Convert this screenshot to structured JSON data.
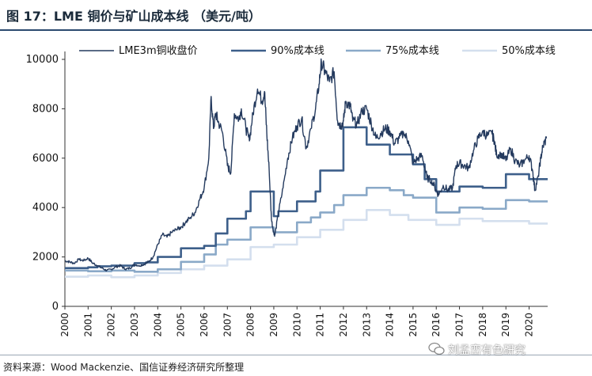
{
  "header": {
    "title": "图 17：LME 铜价与矿山成本线  （美元/吨）"
  },
  "footer": {
    "source": "资料来源：Wood Mackenzie、国信证券经济研究所整理",
    "watermark": "刘孟峦有色研究"
  },
  "chart_data": {
    "type": "line",
    "ylim": [
      0,
      10000
    ],
    "yticks": [
      "0",
      "2000",
      "4000",
      "6000",
      "8000",
      "10000"
    ],
    "xlim": [
      2000,
      2020.8
    ],
    "xticks": [
      "2000",
      "2001",
      "2002",
      "2003",
      "2004",
      "2005",
      "2006",
      "2007",
      "2008",
      "2009",
      "2010",
      "2011",
      "2012",
      "2013",
      "2014",
      "2015",
      "2016",
      "2017",
      "2018",
      "2019",
      "2020"
    ],
    "legend_placement": "top",
    "series": [
      {
        "name": "LME3m铜收盘价",
        "color": "#243a5e",
        "style": "line",
        "points": [
          [
            2000.0,
            1850
          ],
          [
            2000.2,
            1800
          ],
          [
            2000.4,
            1750
          ],
          [
            2000.6,
            1900
          ],
          [
            2000.8,
            1850
          ],
          [
            2001.0,
            1950
          ],
          [
            2001.2,
            1750
          ],
          [
            2001.4,
            1650
          ],
          [
            2001.6,
            1550
          ],
          [
            2001.8,
            1450
          ],
          [
            2002.0,
            1500
          ],
          [
            2002.2,
            1600
          ],
          [
            2002.4,
            1650
          ],
          [
            2002.6,
            1500
          ],
          [
            2002.8,
            1550
          ],
          [
            2003.0,
            1700
          ],
          [
            2003.2,
            1650
          ],
          [
            2003.4,
            1700
          ],
          [
            2003.6,
            1800
          ],
          [
            2003.8,
            2000
          ],
          [
            2004.0,
            2500
          ],
          [
            2004.2,
            2900
          ],
          [
            2004.4,
            2800
          ],
          [
            2004.6,
            3000
          ],
          [
            2004.8,
            3100
          ],
          [
            2005.0,
            3200
          ],
          [
            2005.2,
            3400
          ],
          [
            2005.4,
            3600
          ],
          [
            2005.6,
            3800
          ],
          [
            2005.8,
            4300
          ],
          [
            2006.0,
            4800
          ],
          [
            2006.2,
            6000
          ],
          [
            2006.3,
            8500
          ],
          [
            2006.4,
            7200
          ],
          [
            2006.5,
            7800
          ],
          [
            2006.6,
            7500
          ],
          [
            2006.8,
            7000
          ],
          [
            2007.0,
            5700
          ],
          [
            2007.15,
            5400
          ],
          [
            2007.3,
            7800
          ],
          [
            2007.5,
            7600
          ],
          [
            2007.6,
            8000
          ],
          [
            2007.8,
            7200
          ],
          [
            2007.95,
            6700
          ],
          [
            2008.1,
            7800
          ],
          [
            2008.3,
            8800
          ],
          [
            2008.5,
            8300
          ],
          [
            2008.6,
            8700
          ],
          [
            2008.7,
            7000
          ],
          [
            2008.8,
            5500
          ],
          [
            2008.9,
            3500
          ],
          [
            2009.0,
            3000
          ],
          [
            2009.05,
            2900
          ],
          [
            2009.2,
            3800
          ],
          [
            2009.4,
            4800
          ],
          [
            2009.6,
            6000
          ],
          [
            2009.8,
            6800
          ],
          [
            2010.0,
            7300
          ],
          [
            2010.2,
            7600
          ],
          [
            2010.4,
            6400
          ],
          [
            2010.6,
            7200
          ],
          [
            2010.8,
            8000
          ],
          [
            2010.95,
            9000
          ],
          [
            2011.05,
            9900
          ],
          [
            2011.2,
            9500
          ],
          [
            2011.4,
            9100
          ],
          [
            2011.6,
            9500
          ],
          [
            2011.75,
            7500
          ],
          [
            2011.9,
            7300
          ],
          [
            2012.0,
            7500
          ],
          [
            2012.1,
            8300
          ],
          [
            2012.3,
            8100
          ],
          [
            2012.4,
            7500
          ],
          [
            2012.6,
            7400
          ],
          [
            2012.8,
            7900
          ],
          [
            2013.0,
            8000
          ],
          [
            2013.2,
            7400
          ],
          [
            2013.4,
            6800
          ],
          [
            2013.6,
            7000
          ],
          [
            2013.8,
            7200
          ],
          [
            2014.0,
            7100
          ],
          [
            2014.2,
            6600
          ],
          [
            2014.4,
            6800
          ],
          [
            2014.6,
            7000
          ],
          [
            2014.8,
            6700
          ],
          [
            2015.0,
            5800
          ],
          [
            2015.2,
            6000
          ],
          [
            2015.4,
            6100
          ],
          [
            2015.6,
            5200
          ],
          [
            2015.8,
            5100
          ],
          [
            2016.0,
            4700
          ],
          [
            2016.1,
            4500
          ],
          [
            2016.3,
            4900
          ],
          [
            2016.5,
            4700
          ],
          [
            2016.7,
            4800
          ],
          [
            2016.85,
            5700
          ],
          [
            2017.0,
            5800
          ],
          [
            2017.2,
            5700
          ],
          [
            2017.4,
            5600
          ],
          [
            2017.6,
            6300
          ],
          [
            2017.8,
            6800
          ],
          [
            2018.0,
            7100
          ],
          [
            2018.2,
            6900
          ],
          [
            2018.4,
            7000
          ],
          [
            2018.5,
            6700
          ],
          [
            2018.6,
            6100
          ],
          [
            2018.8,
            6200
          ],
          [
            2019.0,
            5900
          ],
          [
            2019.2,
            6400
          ],
          [
            2019.4,
            5900
          ],
          [
            2019.6,
            5700
          ],
          [
            2019.8,
            5900
          ],
          [
            2020.0,
            6100
          ],
          [
            2020.15,
            5500
          ],
          [
            2020.25,
            4700
          ],
          [
            2020.4,
            5300
          ],
          [
            2020.5,
            6000
          ],
          [
            2020.6,
            6500
          ],
          [
            2020.75,
            6800
          ]
        ]
      },
      {
        "name": "90%成本线",
        "color": "#3d5f8a",
        "style": "step",
        "points": [
          [
            2000.0,
            1550
          ],
          [
            2001.0,
            1580
          ],
          [
            2001.4,
            1620
          ],
          [
            2002.0,
            1650
          ],
          [
            2003.0,
            1750
          ],
          [
            2003.5,
            1780
          ],
          [
            2004.0,
            2000
          ],
          [
            2005.0,
            2350
          ],
          [
            2006.0,
            2450
          ],
          [
            2006.5,
            2950
          ],
          [
            2007.0,
            3550
          ],
          [
            2007.8,
            3850
          ],
          [
            2008.0,
            4650
          ],
          [
            2009.0,
            3650
          ],
          [
            2009.2,
            3850
          ],
          [
            2010.0,
            4250
          ],
          [
            2010.8,
            4650
          ],
          [
            2011.0,
            5500
          ],
          [
            2012.0,
            7250
          ],
          [
            2013.0,
            6550
          ],
          [
            2014.0,
            6150
          ],
          [
            2015.0,
            5750
          ],
          [
            2015.5,
            5150
          ],
          [
            2016.0,
            4650
          ],
          [
            2017.0,
            4850
          ],
          [
            2018.0,
            4800
          ],
          [
            2019.0,
            5350
          ],
          [
            2020.0,
            5150
          ],
          [
            2020.8,
            5150
          ]
        ]
      },
      {
        "name": "75%成本线",
        "color": "#8aa9c8",
        "style": "step",
        "points": [
          [
            2000.0,
            1450
          ],
          [
            2001.0,
            1420
          ],
          [
            2002.0,
            1450
          ],
          [
            2003.0,
            1400
          ],
          [
            2004.0,
            1500
          ],
          [
            2005.0,
            1800
          ],
          [
            2006.0,
            2100
          ],
          [
            2006.5,
            2500
          ],
          [
            2007.0,
            2700
          ],
          [
            2008.0,
            3200
          ],
          [
            2009.0,
            3000
          ],
          [
            2010.0,
            3400
          ],
          [
            2010.6,
            3600
          ],
          [
            2011.0,
            3800
          ],
          [
            2011.6,
            4100
          ],
          [
            2012.0,
            4500
          ],
          [
            2013.0,
            4800
          ],
          [
            2014.0,
            4700
          ],
          [
            2014.6,
            4500
          ],
          [
            2015.0,
            4400
          ],
          [
            2016.0,
            3800
          ],
          [
            2017.0,
            4000
          ],
          [
            2018.0,
            3950
          ],
          [
            2019.0,
            4300
          ],
          [
            2020.0,
            4250
          ],
          [
            2020.8,
            4250
          ]
        ]
      },
      {
        "name": "50%成本线",
        "color": "#d4dfee",
        "style": "step",
        "points": [
          [
            2000.0,
            1200
          ],
          [
            2001.0,
            1250
          ],
          [
            2002.0,
            1180
          ],
          [
            2003.0,
            1250
          ],
          [
            2004.0,
            1350
          ],
          [
            2005.0,
            1500
          ],
          [
            2006.0,
            1650
          ],
          [
            2007.0,
            1900
          ],
          [
            2008.0,
            2400
          ],
          [
            2009.0,
            2500
          ],
          [
            2010.0,
            2800
          ],
          [
            2011.0,
            3100
          ],
          [
            2012.0,
            3500
          ],
          [
            2013.0,
            3900
          ],
          [
            2014.0,
            3700
          ],
          [
            2014.8,
            3500
          ],
          [
            2016.0,
            3300
          ],
          [
            2017.0,
            3550
          ],
          [
            2018.0,
            3450
          ],
          [
            2019.0,
            3450
          ],
          [
            2020.0,
            3350
          ],
          [
            2020.8,
            3350
          ]
        ]
      }
    ]
  }
}
